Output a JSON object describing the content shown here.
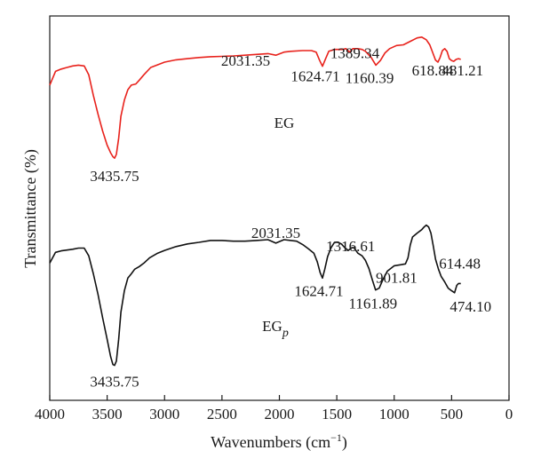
{
  "chart_data": {
    "type": "line",
    "title": "",
    "xlabel": "Wavenumbers (cm−1)",
    "ylabel": "Transmittance (%)",
    "xlim": [
      4000,
      0
    ],
    "x_reversed": true,
    "x_ticks": [
      "4000",
      "3500",
      "3000",
      "2500",
      "2000",
      "1500",
      "1000",
      "500",
      "0"
    ],
    "y_ticks_shown": false,
    "y_units": "relative transmittance, arbitrary units (0 = bottom of plot, 100 = top)",
    "grid": false,
    "series": [
      {
        "name": "EG",
        "color": "#e8221c",
        "label_parts": {
          "base": "EG",
          "sub": ""
        },
        "points": [
          [
            4000,
            82.0
          ],
          [
            3950,
            85.6
          ],
          [
            3900,
            86.2
          ],
          [
            3850,
            86.6
          ],
          [
            3800,
            87.0
          ],
          [
            3750,
            87.2
          ],
          [
            3700,
            87.0
          ],
          [
            3660,
            84.7
          ],
          [
            3620,
            79.3
          ],
          [
            3580,
            74.5
          ],
          [
            3540,
            70.1
          ],
          [
            3500,
            66.4
          ],
          [
            3470,
            64.4
          ],
          [
            3450,
            63.4
          ],
          [
            3435,
            63.0
          ],
          [
            3420,
            64.0
          ],
          [
            3400,
            68.2
          ],
          [
            3380,
            73.9
          ],
          [
            3350,
            78.1
          ],
          [
            3320,
            80.8
          ],
          [
            3290,
            82.0
          ],
          [
            3250,
            82.3
          ],
          [
            3220,
            83.3
          ],
          [
            3180,
            84.7
          ],
          [
            3120,
            86.6
          ],
          [
            3060,
            87.3
          ],
          [
            3000,
            88.0
          ],
          [
            2900,
            88.6
          ],
          [
            2800,
            88.9
          ],
          [
            2700,
            89.2
          ],
          [
            2600,
            89.4
          ],
          [
            2500,
            89.5
          ],
          [
            2400,
            89.6
          ],
          [
            2300,
            89.8
          ],
          [
            2200,
            90.0
          ],
          [
            2100,
            90.2
          ],
          [
            2031,
            89.8
          ],
          [
            1960,
            90.6
          ],
          [
            1900,
            90.8
          ],
          [
            1800,
            91.0
          ],
          [
            1720,
            91.0
          ],
          [
            1680,
            90.6
          ],
          [
            1650,
            88.5
          ],
          [
            1625,
            86.9
          ],
          [
            1600,
            88.7
          ],
          [
            1570,
            90.8
          ],
          [
            1520,
            91.3
          ],
          [
            1450,
            91.3
          ],
          [
            1420,
            91.5
          ],
          [
            1389,
            90.6
          ],
          [
            1360,
            91.5
          ],
          [
            1320,
            91.5
          ],
          [
            1280,
            91.3
          ],
          [
            1250,
            90.8
          ],
          [
            1200,
            89.2
          ],
          [
            1160,
            87.2
          ],
          [
            1120,
            88.4
          ],
          [
            1080,
            90.4
          ],
          [
            1040,
            91.5
          ],
          [
            980,
            92.3
          ],
          [
            920,
            92.5
          ],
          [
            860,
            93.4
          ],
          [
            800,
            94.3
          ],
          [
            760,
            94.5
          ],
          [
            720,
            93.8
          ],
          [
            690,
            92.5
          ],
          [
            660,
            90.1
          ],
          [
            640,
            88.5
          ],
          [
            619,
            88.0
          ],
          [
            600,
            89.2
          ],
          [
            580,
            91.0
          ],
          [
            560,
            91.5
          ],
          [
            540,
            90.8
          ],
          [
            520,
            88.9
          ],
          [
            500,
            88.4
          ],
          [
            481,
            88.2
          ],
          [
            460,
            88.7
          ],
          [
            440,
            88.9
          ],
          [
            420,
            88.7
          ]
        ]
      },
      {
        "name": "EGp",
        "color": "#111111",
        "label_parts": {
          "base": "EG",
          "sub": "p"
        },
        "points": [
          [
            4000,
            35.7
          ],
          [
            3950,
            38.5
          ],
          [
            3900,
            38.9
          ],
          [
            3850,
            39.1
          ],
          [
            3800,
            39.3
          ],
          [
            3750,
            39.6
          ],
          [
            3700,
            39.6
          ],
          [
            3660,
            37.6
          ],
          [
            3620,
            32.9
          ],
          [
            3580,
            27.6
          ],
          [
            3540,
            21.5
          ],
          [
            3500,
            15.9
          ],
          [
            3470,
            11.4
          ],
          [
            3450,
            9.3
          ],
          [
            3435,
            9.1
          ],
          [
            3420,
            10.2
          ],
          [
            3400,
            15.9
          ],
          [
            3380,
            22.9
          ],
          [
            3350,
            28.5
          ],
          [
            3320,
            31.8
          ],
          [
            3290,
            32.9
          ],
          [
            3260,
            34.1
          ],
          [
            3220,
            34.8
          ],
          [
            3180,
            35.7
          ],
          [
            3130,
            37.1
          ],
          [
            3060,
            38.3
          ],
          [
            3000,
            39.0
          ],
          [
            2900,
            40.0
          ],
          [
            2800,
            40.7
          ],
          [
            2700,
            41.1
          ],
          [
            2600,
            41.6
          ],
          [
            2500,
            41.6
          ],
          [
            2400,
            41.4
          ],
          [
            2300,
            41.4
          ],
          [
            2200,
            41.6
          ],
          [
            2100,
            41.8
          ],
          [
            2031,
            40.9
          ],
          [
            1960,
            41.8
          ],
          [
            1900,
            41.6
          ],
          [
            1850,
            41.4
          ],
          [
            1790,
            40.4
          ],
          [
            1750,
            39.5
          ],
          [
            1700,
            38.3
          ],
          [
            1670,
            36.0
          ],
          [
            1645,
            33.2
          ],
          [
            1625,
            31.8
          ],
          [
            1605,
            34.1
          ],
          [
            1580,
            37.4
          ],
          [
            1550,
            39.7
          ],
          [
            1520,
            41.1
          ],
          [
            1490,
            41.1
          ],
          [
            1460,
            40.7
          ],
          [
            1430,
            39.7
          ],
          [
            1400,
            39.0
          ],
          [
            1370,
            39.7
          ],
          [
            1350,
            39.7
          ],
          [
            1317,
            38.3
          ],
          [
            1280,
            37.6
          ],
          [
            1250,
            36.4
          ],
          [
            1220,
            34.3
          ],
          [
            1190,
            31.3
          ],
          [
            1162,
            28.7
          ],
          [
            1130,
            29.2
          ],
          [
            1100,
            31.3
          ],
          [
            1060,
            33.6
          ],
          [
            1000,
            35.0
          ],
          [
            940,
            35.3
          ],
          [
            902,
            35.5
          ],
          [
            880,
            37.1
          ],
          [
            860,
            40.4
          ],
          [
            840,
            42.5
          ],
          [
            800,
            43.5
          ],
          [
            760,
            44.4
          ],
          [
            740,
            45.1
          ],
          [
            720,
            45.6
          ],
          [
            700,
            45.1
          ],
          [
            680,
            43.5
          ],
          [
            660,
            40.2
          ],
          [
            640,
            36.7
          ],
          [
            614,
            34.1
          ],
          [
            590,
            32.2
          ],
          [
            560,
            30.8
          ],
          [
            530,
            29.2
          ],
          [
            500,
            28.5
          ],
          [
            474,
            28.0
          ],
          [
            455,
            29.9
          ],
          [
            440,
            30.4
          ],
          [
            420,
            30.4
          ]
        ]
      }
    ],
    "annotations": [
      {
        "text": "3435.75",
        "x": 3435,
        "y": 63.0,
        "series": 0
      },
      {
        "text": "2031.35",
        "x": 2031,
        "y": 89.8,
        "series": 0
      },
      {
        "text": "1624.71",
        "x": 1625,
        "y": 86.9,
        "series": 0
      },
      {
        "text": "1389.34",
        "x": 1389,
        "y": 90.6,
        "series": 0
      },
      {
        "text": "1160.39",
        "x": 1160,
        "y": 87.2,
        "series": 0
      },
      {
        "text": "618.84",
        "x": 619,
        "y": 88.0,
        "series": 0
      },
      {
        "text": "481.21",
        "x": 481,
        "y": 88.2,
        "series": 0
      },
      {
        "text": "3435.75",
        "x": 3435,
        "y": 9.1,
        "series": 1
      },
      {
        "text": "2031.35",
        "x": 2031,
        "y": 40.9,
        "series": 1
      },
      {
        "text": "1624.71",
        "x": 1625,
        "y": 31.8,
        "series": 1
      },
      {
        "text": "1316.61",
        "x": 1317,
        "y": 38.3,
        "series": 1
      },
      {
        "text": "1161.89",
        "x": 1162,
        "y": 28.7,
        "series": 1
      },
      {
        "text": "901.81",
        "x": 902,
        "y": 35.5,
        "series": 1
      },
      {
        "text": "614.48",
        "x": 614,
        "y": 34.1,
        "series": 1
      },
      {
        "text": "474.10",
        "x": 474,
        "y": 28.0,
        "series": 1
      }
    ]
  }
}
